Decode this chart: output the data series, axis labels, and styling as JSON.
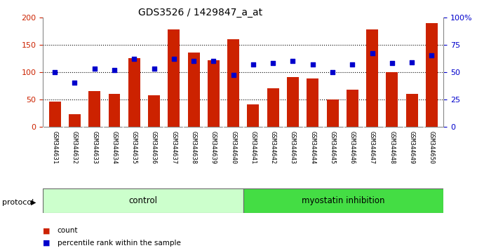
{
  "title": "GDS3526 / 1429847_a_at",
  "samples": [
    "GSM344631",
    "GSM344632",
    "GSM344633",
    "GSM344634",
    "GSM344635",
    "GSM344636",
    "GSM344637",
    "GSM344638",
    "GSM344639",
    "GSM344640",
    "GSM344641",
    "GSM344642",
    "GSM344643",
    "GSM344644",
    "GSM344645",
    "GSM344646",
    "GSM344647",
    "GSM344648",
    "GSM344649",
    "GSM344650"
  ],
  "counts": [
    45,
    23,
    65,
    60,
    125,
    57,
    178,
    135,
    122,
    160,
    40,
    70,
    90,
    88,
    50,
    68,
    178,
    100,
    60,
    190
  ],
  "percentile": [
    50,
    40,
    53,
    52,
    62,
    53,
    62,
    60,
    60,
    47,
    57,
    58,
    60,
    57,
    50,
    57,
    67,
    58,
    59,
    65
  ],
  "bar_color": "#cc2200",
  "scatter_color": "#0000cc",
  "control_group_color": "#ccffcc",
  "inhibition_group_color": "#44dd44",
  "control_count": 10,
  "inhibition_count": 10,
  "left_ylim": [
    0,
    200
  ],
  "right_ylim": [
    0,
    100
  ],
  "left_yticks": [
    0,
    50,
    100,
    150,
    200
  ],
  "right_yticks": [
    0,
    25,
    50,
    75,
    100
  ],
  "right_yticklabels": [
    "0",
    "25",
    "50",
    "75",
    "100%"
  ],
  "legend_count_label": "count",
  "legend_pct_label": "percentile rank within the sample",
  "protocol_label": "protocol",
  "control_label": "control",
  "inhibition_label": "myostatin inhibition",
  "grid_color": "#aaaaaa",
  "bg_color": "#ffffff",
  "bar_width": 0.6,
  "label_bg_color": "#cccccc"
}
